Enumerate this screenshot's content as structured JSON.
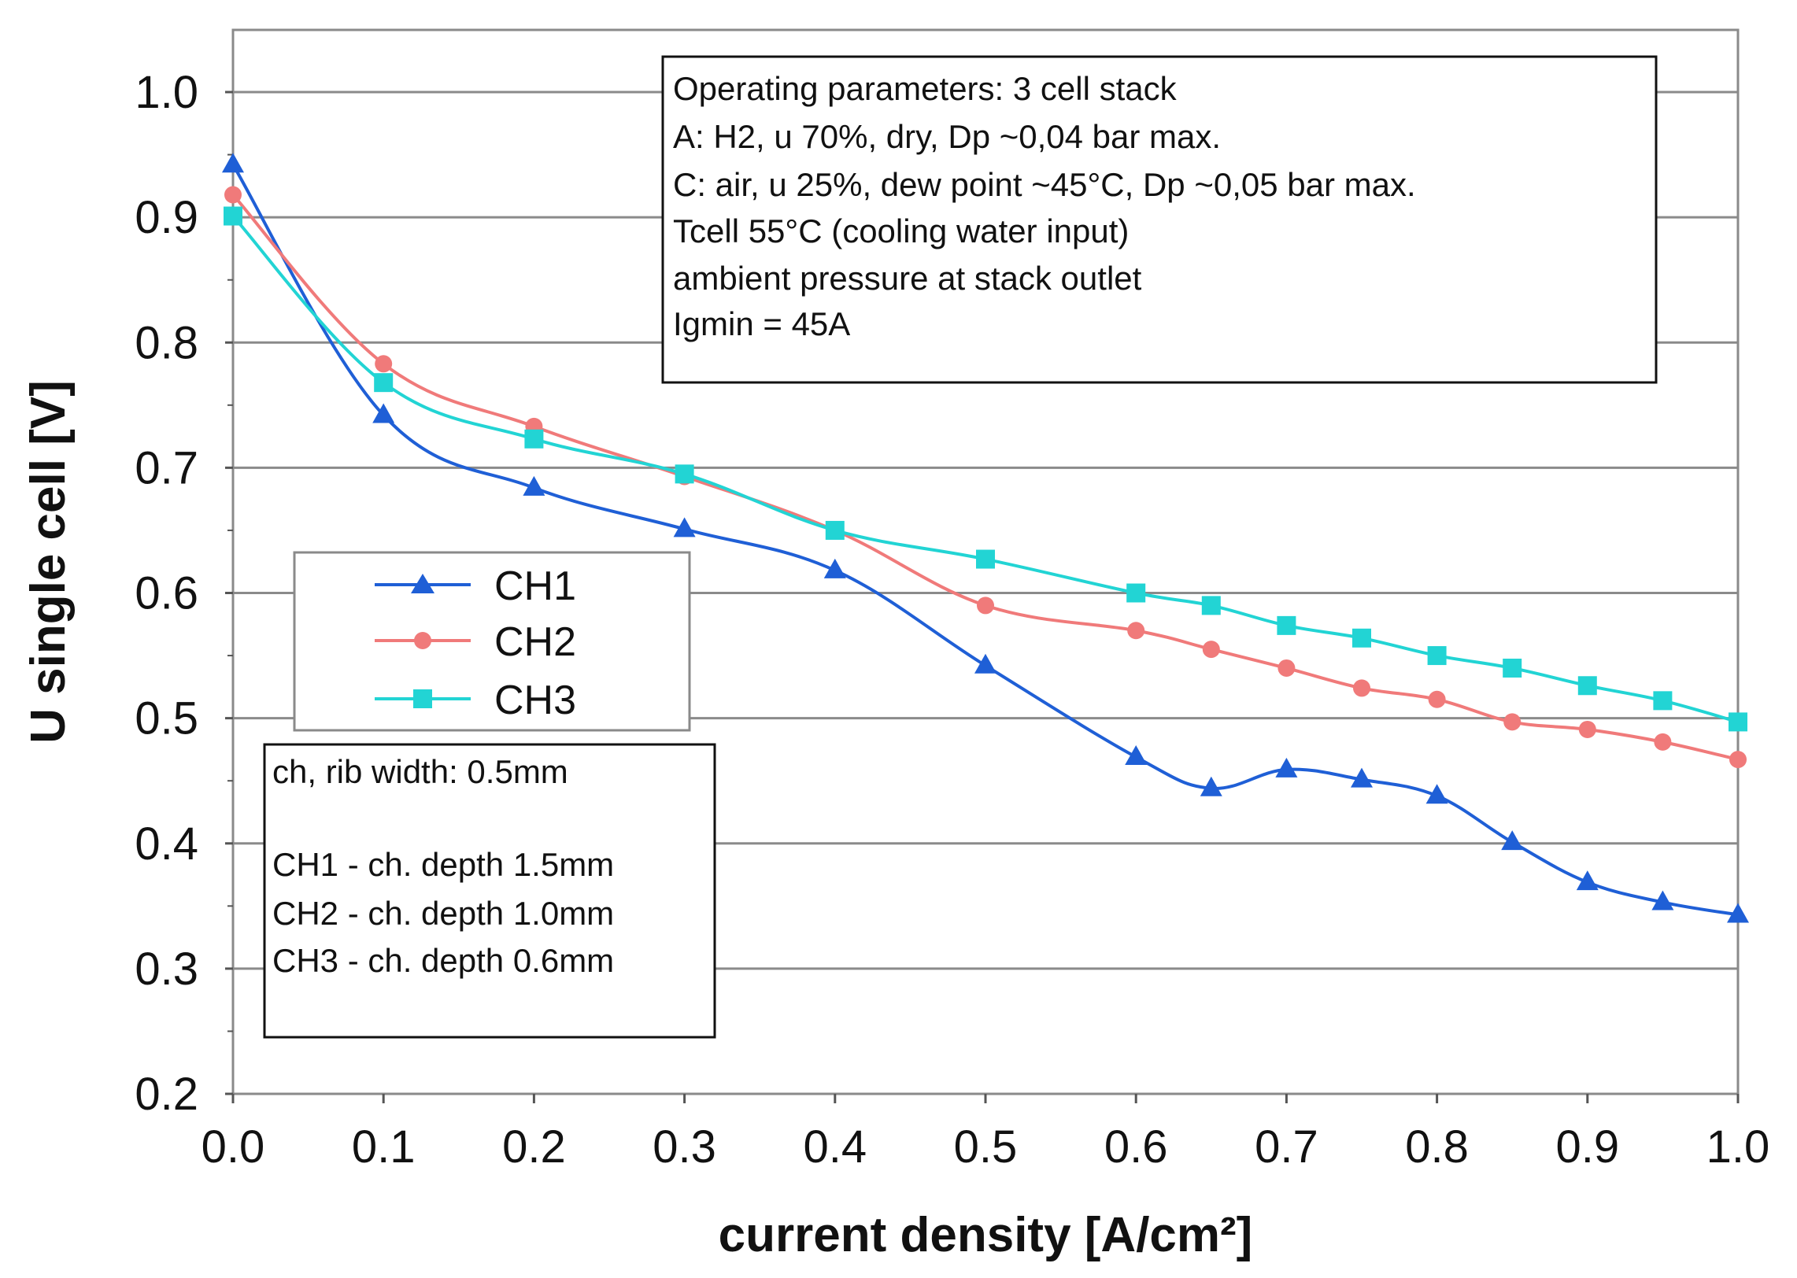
{
  "chart_data": {
    "type": "line",
    "title": "",
    "xlabel": "current density [A/cm²]",
    "ylabel": "U single cell [V]",
    "xlim": [
      0.0,
      1.0
    ],
    "ylim": [
      0.2,
      1.05
    ],
    "grid": "horizontal",
    "x_ticks": [
      "0.0",
      "0.1",
      "0.2",
      "0.3",
      "0.4",
      "0.5",
      "0.6",
      "0.7",
      "0.8",
      "0.9",
      "1.0"
    ],
    "y_ticks": [
      "0.2",
      "0.3",
      "0.4",
      "0.5",
      "0.6",
      "0.7",
      "0.8",
      "0.9",
      "1.0"
    ],
    "series": [
      {
        "name": "CH1",
        "color": "#1f5fd6",
        "marker": "triangle",
        "x": [
          0.0,
          0.1,
          0.2,
          0.3,
          0.4,
          0.5,
          0.6,
          0.65,
          0.7,
          0.75,
          0.8,
          0.85,
          0.9,
          0.95,
          1.0
        ],
        "y": [
          0.942,
          0.742,
          0.684,
          0.651,
          0.618,
          0.542,
          0.469,
          0.444,
          0.459,
          0.451,
          0.438,
          0.401,
          0.369,
          0.353,
          0.343
        ]
      },
      {
        "name": "CH2",
        "color": "#f07a7a",
        "marker": "circle",
        "x": [
          0.0,
          0.1,
          0.2,
          0.3,
          0.4,
          0.5,
          0.6,
          0.65,
          0.7,
          0.75,
          0.8,
          0.85,
          0.9,
          0.95,
          1.0
        ],
        "y": [
          0.918,
          0.783,
          0.733,
          0.693,
          0.65,
          0.59,
          0.57,
          0.555,
          0.54,
          0.524,
          0.515,
          0.497,
          0.491,
          0.481,
          0.467
        ]
      },
      {
        "name": "CH3",
        "color": "#22d4d4",
        "marker": "square",
        "x": [
          0.0,
          0.1,
          0.2,
          0.3,
          0.4,
          0.5,
          0.6,
          0.65,
          0.7,
          0.75,
          0.8,
          0.85,
          0.9,
          0.95,
          1.0
        ],
        "y": [
          0.901,
          0.768,
          0.723,
          0.695,
          0.65,
          0.627,
          0.6,
          0.59,
          0.574,
          0.564,
          0.55,
          0.54,
          0.526,
          0.514,
          0.497
        ]
      }
    ],
    "legend": {
      "placement": "middle-left",
      "entries": [
        "CH1",
        "CH2",
        "CH3"
      ]
    },
    "annotations": {
      "operating_parameters": [
        "Operating parameters: 3 cell stack",
        "A: H2, u 70%, dry, Dp ~0,04 bar max.",
        "C: air, u 25%, dew point ~45°C, Dp ~0,05 bar max.",
        "Tcell 55°C (cooling water input)",
        "ambient pressure at stack outlet",
        "Igmin = 45A"
      ],
      "channel_info": [
        "ch, rib width: 0.5mm",
        "",
        "CH1 - ch. depth 1.5mm",
        "CH2 - ch. depth 1.0mm",
        "CH3 - ch. depth 0.6mm"
      ]
    }
  }
}
